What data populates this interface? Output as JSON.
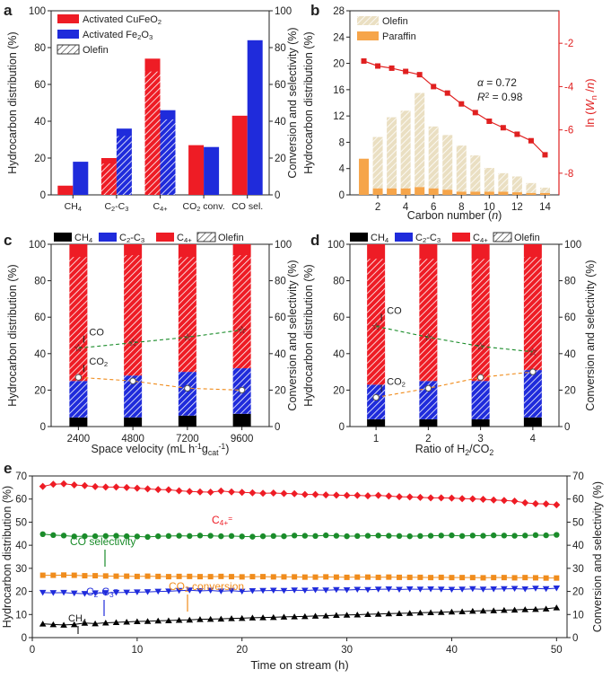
{
  "colors": {
    "red": "#ee1c25",
    "blue": "#1f2bdb",
    "black": "#000000",
    "olefin_beige": "#eadfc2",
    "paraffin_orange": "#f6a54a",
    "ln_red": "#e02020",
    "green": "#1a8c2a",
    "orange": "#f08c1c"
  },
  "chart_data": [
    {
      "panel": "a",
      "type": "bar",
      "categories": [
        "CH4",
        "C2-C3",
        "C4+",
        "CO2 conv.",
        "CO sel."
      ],
      "category_labels": [
        {
          "main": "CH",
          "sub": "4",
          "sup": ""
        },
        {
          "main": "C",
          "sub": "2",
          "sup": "",
          "main2": "-C",
          "sub2": "3"
        },
        {
          "main": "C",
          "sub": "4+",
          "sup": ""
        },
        {
          "main": "CO",
          "sub": "2",
          "sup": "",
          "main2": " conv.",
          "sub2": ""
        },
        {
          "main": "CO sel.",
          "sub": "",
          "sup": ""
        }
      ],
      "series": [
        {
          "name": "Activated CuFeO2",
          "legend_main": "Activated CuFeO",
          "legend_sub": "2",
          "color": "red",
          "values": [
            5,
            20,
            74,
            27,
            43
          ],
          "olefin": [
            0,
            17,
            67,
            0,
            0
          ]
        },
        {
          "name": "Activated Fe2O3",
          "legend_main": "Activated Fe",
          "legend_sub": "2",
          "legend_main2": "O",
          "legend_sub2": "3",
          "color": "blue",
          "values": [
            18,
            36,
            46,
            26,
            84
          ],
          "olefin": [
            0,
            32,
            41,
            0,
            0
          ]
        }
      ],
      "legend_olefin": "Olefin",
      "ylabel": "Hydrocarbon distribution (%)",
      "y2label": "Conversion and selectivity (%)",
      "ylim": [
        0,
        100
      ],
      "y2lim": [
        0,
        100
      ],
      "yticks": [
        0,
        20,
        40,
        60,
        80,
        100
      ]
    },
    {
      "panel": "b",
      "type": "bar+line",
      "x": [
        1,
        2,
        3,
        4,
        5,
        6,
        7,
        8,
        9,
        10,
        11,
        12,
        13,
        14
      ],
      "olefin": [
        0,
        7.8,
        10.8,
        11.8,
        14.3,
        9.4,
        8.3,
        7.0,
        5.5,
        3.6,
        2.8,
        2.4,
        1.5,
        0.8
      ],
      "paraffin": [
        5.5,
        1.0,
        1.0,
        1.0,
        1.2,
        1.0,
        0.8,
        0.5,
        0.5,
        0.5,
        0.5,
        0.4,
        0.3,
        0.3
      ],
      "ln_wn": [
        -2.82,
        -3.05,
        -3.15,
        -3.3,
        -3.45,
        -4.0,
        -4.3,
        -4.8,
        -5.2,
        -5.6,
        -5.9,
        -6.2,
        -6.5,
        -7.15
      ],
      "legend": [
        "Olefin",
        "Paraffin"
      ],
      "annotation_alpha": "= 0.72",
      "annotation_r2": "= 0.98",
      "xlabel": "Carbon number (n)",
      "xlabel_main": "Carbon number (",
      "xlabel_var": "n",
      "xlabel_end": ")",
      "ylabel": "Hydrocarbon distribution (%)",
      "y2label_main": "ln (",
      "y2label_var": "W",
      "y2label_sub": "n",
      "y2label_mid": " /",
      "y2label_var2": "n",
      "y2label_end": ")",
      "xticks": [
        2,
        4,
        6,
        8,
        10,
        12,
        14
      ],
      "xlim": [
        0,
        15
      ],
      "ylim": [
        0,
        28
      ],
      "yticks": [
        0,
        4,
        8,
        12,
        16,
        20,
        24,
        28
      ],
      "y2lim": [
        -9,
        -0.5
      ],
      "y2ticks": [
        -2,
        -4,
        -6,
        -8
      ]
    },
    {
      "panel": "c",
      "type": "stacked-bar+line",
      "categories": [
        "2400",
        "4800",
        "7200",
        "9600"
      ],
      "ch4": [
        5,
        5,
        6,
        7
      ],
      "c2c3": [
        20,
        23,
        24,
        25
      ],
      "c4": [
        75,
        72,
        70,
        68
      ],
      "c2c3_olefin": [
        20,
        23,
        24,
        25
      ],
      "c4_olefin": [
        68,
        66,
        63,
        62
      ],
      "co": [
        43,
        46,
        49,
        53
      ],
      "co2": [
        27,
        25,
        21,
        20
      ],
      "legend": [
        "CH4",
        "C2-C3",
        "C4+",
        "Olefin"
      ],
      "label_co": "CO",
      "label_co2_main": "CO",
      "label_co2_sub": "2",
      "xlabel_main": "Space velocity (mL h",
      "xlabel_sup": "-1",
      "xlabel_mid": "g",
      "xlabel_sub": "cat",
      "xlabel_sup2": "-1",
      "xlabel_end": ")",
      "ylabel": "Hydrocarbon distribution (%)",
      "y2label": "Conversion and selectivity (%)",
      "ylim": [
        0,
        100
      ],
      "yticks": [
        0,
        20,
        40,
        60,
        80,
        100
      ]
    },
    {
      "panel": "d",
      "type": "stacked-bar+line",
      "categories": [
        "1",
        "2",
        "3",
        "4"
      ],
      "ch4": [
        4,
        4,
        4,
        5
      ],
      "c2c3": [
        19,
        21,
        21,
        26
      ],
      "c4": [
        77,
        75,
        75,
        69
      ],
      "c2c3_olefin": [
        19,
        21,
        21,
        26
      ],
      "c4_olefin": [
        69,
        67,
        67,
        62
      ],
      "co": [
        55,
        49,
        44,
        41
      ],
      "co2": [
        16,
        21,
        27,
        30
      ],
      "legend": [
        "CH4",
        "C2-C3",
        "C4+",
        "Olefin"
      ],
      "label_co": "CO",
      "label_co2_main": "CO",
      "label_co2_sub": "2",
      "xlabel_main": "Ratio of H",
      "xlabel_sub": "2",
      "xlabel_end": "/CO",
      "xlabel_sub2": "2",
      "ylabel": "Hydrocarbon distribution (%)",
      "y2label": "Conversion and selectivity (%)",
      "ylim": [
        0,
        100
      ],
      "yticks": [
        0,
        20,
        40,
        60,
        80,
        100
      ]
    },
    {
      "panel": "e",
      "type": "line",
      "x": [
        1,
        2,
        3,
        4,
        5,
        6,
        7,
        8,
        9,
        10,
        11,
        12,
        13,
        14,
        15,
        16,
        17,
        18,
        19,
        20,
        21,
        22,
        23,
        24,
        25,
        26,
        27,
        28,
        29,
        30,
        31,
        32,
        33,
        34,
        35,
        36,
        37,
        38,
        39,
        40,
        41,
        42,
        43,
        44,
        45,
        46,
        47,
        48,
        49,
        50
      ],
      "series": [
        {
          "name": "C4+=",
          "label_main": "C",
          "label_sub": "4+",
          "label_sup": "=",
          "marker": "diamond",
          "color": "red",
          "values": [
            65.5,
            66.4,
            66.6,
            66.1,
            65.8,
            65.4,
            65.2,
            65.2,
            65.0,
            64.7,
            64.4,
            64.1,
            64.0,
            63.6,
            63.3,
            63.1,
            63.0,
            63.5,
            63.1,
            62.9,
            62.7,
            62.5,
            62.6,
            62.4,
            62.3,
            62.0,
            62.0,
            61.8,
            61.7,
            61.6,
            61.6,
            61.4,
            61.6,
            61.3,
            61.0,
            60.9,
            60.7,
            60.5,
            60.5,
            60.4,
            60.2,
            60.1,
            59.9,
            59.6,
            59.4,
            59.1,
            58.4,
            58.0,
            57.9,
            57.5
          ]
        },
        {
          "name": "CO selectivity",
          "label": "CO selectivity",
          "marker": "circle",
          "color": "green",
          "values": [
            44.8,
            44.4,
            44.2,
            43.8,
            43.9,
            43.9,
            44.0,
            44.1,
            43.9,
            43.8,
            43.6,
            43.9,
            44.0,
            44.1,
            44.0,
            44.2,
            44.1,
            43.9,
            44.0,
            43.8,
            43.7,
            43.9,
            44.0,
            43.9,
            44.2,
            44.1,
            44.0,
            44.3,
            44.1,
            43.9,
            44.0,
            44.1,
            44.2,
            44.1,
            44.0,
            43.9,
            44.0,
            44.1,
            44.2,
            44.3,
            44.0,
            44.2,
            44.1,
            44.3,
            44.2,
            44.1,
            44.2,
            44.4,
            44.3,
            44.5
          ]
        },
        {
          "name": "CO2 conversion",
          "label_main": "CO",
          "label_sub": "2",
          "label_end": " conversion",
          "marker": "square",
          "color": "orange",
          "values": [
            27.0,
            27.0,
            27.1,
            27.0,
            26.8,
            26.8,
            26.7,
            26.6,
            26.6,
            26.5,
            26.6,
            26.5,
            26.4,
            26.5,
            26.5,
            26.4,
            26.4,
            26.5,
            26.4,
            26.3,
            26.4,
            26.4,
            26.3,
            26.3,
            26.3,
            26.2,
            26.2,
            26.3,
            26.2,
            26.1,
            26.2,
            26.2,
            26.1,
            26.2,
            26.1,
            26.1,
            26.1,
            26.0,
            26.1,
            26.0,
            26.0,
            26.0,
            25.9,
            26.0,
            26.0,
            25.9,
            26.0,
            25.9,
            25.8,
            25.8
          ]
        },
        {
          "name": "C2-C3=",
          "label_main": "C",
          "label_sub": "2",
          "label_mid": "-C",
          "label_sub2": "3",
          "label_sup": "=",
          "marker": "triangle-down",
          "color": "blue",
          "values": [
            19.5,
            19.4,
            19.5,
            19.2,
            19.0,
            19.3,
            19.4,
            19.5,
            19.6,
            19.7,
            19.8,
            20.0,
            20.1,
            20.3,
            20.5,
            20.2,
            20.4,
            20.1,
            20.3,
            20.0,
            20.2,
            20.3,
            20.4,
            20.3,
            20.5,
            20.4,
            20.6,
            20.5,
            20.7,
            20.6,
            20.8,
            20.7,
            20.9,
            21.0,
            20.8,
            21.0,
            20.9,
            21.0,
            20.9,
            20.8,
            20.9,
            21.1,
            20.9,
            21.0,
            21.1,
            21.2,
            21.0,
            21.3,
            21.1,
            21.4
          ]
        },
        {
          "name": "CH4",
          "label_main": "CH",
          "label_sub": "4",
          "marker": "triangle-up",
          "color": "black",
          "values": [
            6.0,
            5.7,
            5.5,
            5.7,
            6.3,
            6.1,
            6.4,
            6.6,
            6.8,
            7.0,
            7.1,
            7.3,
            7.4,
            7.6,
            7.7,
            7.9,
            8.0,
            8.1,
            8.3,
            8.4,
            8.6,
            8.7,
            8.8,
            9.0,
            9.1,
            9.2,
            9.4,
            9.5,
            9.7,
            9.8,
            9.9,
            10.1,
            10.2,
            10.4,
            10.5,
            10.6,
            10.8,
            10.9,
            11.0,
            11.2,
            11.3,
            11.5,
            11.6,
            11.7,
            11.9,
            12.0,
            12.2,
            12.3,
            12.5,
            13.0
          ]
        }
      ],
      "xlabel": "Time on stream (h)",
      "ylabel": "Hydrocarbon distribution (%)",
      "y2label": "Conversion and selectivity (%)",
      "xticks": [
        0,
        10,
        20,
        30,
        40,
        50
      ],
      "xlim": [
        0,
        51
      ],
      "ylim": [
        0,
        70
      ],
      "yticks": [
        0,
        10,
        20,
        30,
        40,
        50,
        60,
        70
      ]
    }
  ]
}
